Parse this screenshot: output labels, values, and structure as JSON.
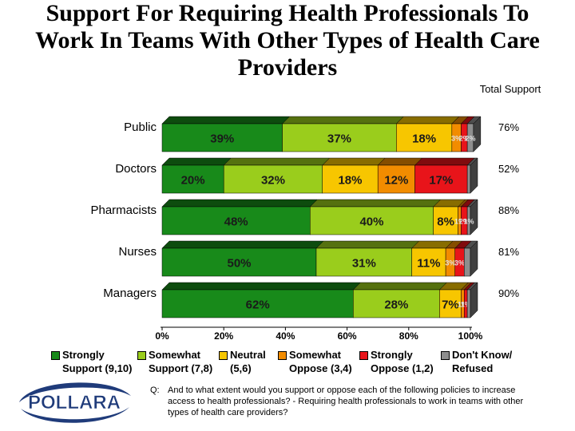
{
  "title": "Support For Requiring Health Professionals To Work In Teams With Other Types of Health Care Providers",
  "total_header": "Total Support",
  "chart_data": {
    "type": "bar",
    "orientation": "horizontal",
    "stacked": true,
    "percent_stacked": true,
    "categories": [
      "Public",
      "Doctors",
      "Pharmacists",
      "Nurses",
      "Managers"
    ],
    "series": [
      {
        "name": "Strongly Support (9,10)",
        "color": "#188a1a",
        "values": [
          39,
          20,
          48,
          50,
          62
        ],
        "labels": [
          "39%",
          "20%",
          "48%",
          "50%",
          "62%"
        ]
      },
      {
        "name": "Somewhat Support (7,8)",
        "color": "#9acd1c",
        "values": [
          37,
          32,
          40,
          31,
          28
        ],
        "labels": [
          "37%",
          "32%",
          "40%",
          "31%",
          "28%"
        ]
      },
      {
        "name": "Neutral (5,6)",
        "color": "#f7c600",
        "values": [
          18,
          18,
          8,
          11,
          7
        ],
        "labels": [
          "18%",
          "18%",
          "8%",
          "11%",
          "7%"
        ]
      },
      {
        "name": "Somewhat Oppose (3,4)",
        "color": "#f28c00",
        "values": [
          3,
          12,
          1,
          3,
          1
        ],
        "labels": [
          "3%",
          "12%",
          "1%",
          "3%",
          "1%"
        ]
      },
      {
        "name": "Strongly Oppose (1,2)",
        "color": "#e8141a",
        "values": [
          2,
          17,
          2,
          3,
          1
        ],
        "labels": [
          "2%",
          "17%",
          "2%",
          "3%",
          "1%"
        ]
      },
      {
        "name": "Don't Know/ Refused",
        "color": "#8e8e8e",
        "values": [
          2,
          1,
          1,
          2,
          1
        ],
        "labels": [
          "2%",
          "",
          "1%",
          "",
          ""
        ]
      }
    ],
    "total_support": [
      "76%",
      "52%",
      "88%",
      "81%",
      "90%"
    ],
    "x_ticks": [
      "0%",
      "20%",
      "40%",
      "60%",
      "80%",
      "100%"
    ],
    "xlim": [
      0,
      100
    ]
  },
  "legend": [
    {
      "line1": "Strongly",
      "line2": "Support (9,10)",
      "color": "#188a1a"
    },
    {
      "line1": "Somewhat",
      "line2": "Support (7,8)",
      "color": "#9acd1c"
    },
    {
      "line1": "Neutral",
      "line2": "(5,6)",
      "color": "#f7c600"
    },
    {
      "line1": "Somewhat",
      "line2": "Oppose (3,4)",
      "color": "#f28c00"
    },
    {
      "line1": "Strongly",
      "line2": "Oppose (1,2)",
      "color": "#e8141a"
    },
    {
      "line1": "Don't Know/",
      "line2": "Refused",
      "color": "#8e8e8e"
    }
  ],
  "logo_text": "POLLARA",
  "footnote_q": "Q:",
  "footnote": "And to what extent would you support or oppose each of the following policies to increase access to health professionals? - Requiring health professionals to work in teams with other types of health care providers?"
}
